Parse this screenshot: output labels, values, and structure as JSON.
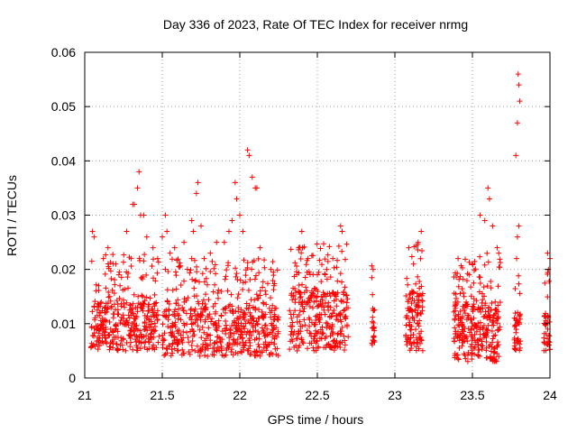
{
  "chart_data": {
    "type": "scatter",
    "title": "Day 336 of 2023, Rate Of TEC Index for receiver nrmg",
    "xlabel": "GPS time / hours",
    "ylabel": "ROTI / TECUs",
    "xlim": [
      21,
      24
    ],
    "ylim": [
      0,
      0.06
    ],
    "xticks": [
      "21",
      "21.5",
      "22",
      "22.5",
      "23",
      "23.5",
      "24"
    ],
    "yticks": [
      "0",
      "0.01",
      "0.02",
      "0.03",
      "0.04",
      "0.05",
      "0.06"
    ],
    "grid": true,
    "marker": "+",
    "color": "#ff0000",
    "series": [
      {
        "name": "ROTI",
        "clusters": [
          {
            "x": [
              21.04,
              21.48
            ],
            "base": [
              0.005,
              0.014
            ],
            "n": 360
          },
          {
            "x": [
              21.5,
              22.25
            ],
            "base": [
              0.004,
              0.013
            ],
            "n": 560
          },
          {
            "x": [
              22.32,
              22.7
            ],
            "base": [
              0.005,
              0.016
            ],
            "n": 320
          },
          {
            "x": [
              22.85,
              22.87
            ],
            "base": [
              0.006,
              0.014
            ],
            "n": 24
          },
          {
            "x": [
              23.07,
              23.18
            ],
            "base": [
              0.005,
              0.016
            ],
            "n": 110
          },
          {
            "x": [
              23.38,
              23.68
            ],
            "base": [
              0.003,
              0.014
            ],
            "n": 300
          },
          {
            "x": [
              23.77,
              23.81
            ],
            "base": [
              0.005,
              0.012
            ],
            "n": 40
          },
          {
            "x": [
              23.96,
              24.0
            ],
            "base": [
              0.005,
              0.012
            ],
            "n": 40
          }
        ],
        "points": [
          [
            21.05,
            0.027
          ],
          [
            21.06,
            0.026
          ],
          [
            21.09,
            0.017
          ],
          [
            21.12,
            0.022
          ],
          [
            21.15,
            0.024
          ],
          [
            21.2,
            0.021
          ],
          [
            21.22,
            0.019
          ],
          [
            21.27,
            0.027
          ],
          [
            21.3,
            0.022
          ],
          [
            21.31,
            0.032
          ],
          [
            21.32,
            0.032
          ],
          [
            21.34,
            0.035
          ],
          [
            21.35,
            0.038
          ],
          [
            21.36,
            0.03
          ],
          [
            21.38,
            0.03
          ],
          [
            21.4,
            0.026
          ],
          [
            21.44,
            0.024
          ],
          [
            21.47,
            0.022
          ],
          [
            21.5,
            0.026
          ],
          [
            21.52,
            0.03
          ],
          [
            21.53,
            0.027
          ],
          [
            21.55,
            0.023
          ],
          [
            21.58,
            0.024
          ],
          [
            21.64,
            0.025
          ],
          [
            21.69,
            0.029
          ],
          [
            21.7,
            0.027
          ],
          [
            21.72,
            0.034
          ],
          [
            21.73,
            0.036
          ],
          [
            21.75,
            0.028
          ],
          [
            21.77,
            0.022
          ],
          [
            21.81,
            0.023
          ],
          [
            21.85,
            0.025
          ],
          [
            21.9,
            0.025
          ],
          [
            21.93,
            0.027
          ],
          [
            21.95,
            0.029
          ],
          [
            21.97,
            0.036
          ],
          [
            21.98,
            0.033
          ],
          [
            22.0,
            0.03
          ],
          [
            22.02,
            0.027
          ],
          [
            22.05,
            0.042
          ],
          [
            22.06,
            0.041
          ],
          [
            22.08,
            0.037
          ],
          [
            22.1,
            0.035
          ],
          [
            22.11,
            0.035
          ],
          [
            22.13,
            0.024
          ],
          [
            22.2,
            0.02
          ],
          [
            22.22,
            0.017
          ],
          [
            22.38,
            0.024
          ],
          [
            22.4,
            0.027
          ],
          [
            22.44,
            0.022
          ],
          [
            22.5,
            0.019
          ],
          [
            22.56,
            0.02
          ],
          [
            22.6,
            0.022
          ],
          [
            22.65,
            0.028
          ],
          [
            22.66,
            0.027
          ],
          [
            22.86,
            0.02
          ],
          [
            23.09,
            0.024
          ],
          [
            23.12,
            0.021
          ],
          [
            23.15,
            0.025
          ],
          [
            23.17,
            0.027
          ],
          [
            23.5,
            0.021
          ],
          [
            23.55,
            0.03
          ],
          [
            23.58,
            0.029
          ],
          [
            23.6,
            0.035
          ],
          [
            23.61,
            0.033
          ],
          [
            23.63,
            0.028
          ],
          [
            23.66,
            0.024
          ],
          [
            23.67,
            0.023
          ],
          [
            23.78,
            0.041
          ],
          [
            23.79,
            0.047
          ],
          [
            23.795,
            0.056
          ],
          [
            23.8,
            0.054
          ],
          [
            23.805,
            0.051
          ],
          [
            23.8,
            0.028
          ],
          [
            23.79,
            0.026
          ],
          [
            23.785,
            0.022
          ],
          [
            23.985,
            0.023
          ],
          [
            23.99,
            0.02
          ],
          [
            24.0,
            0.022
          ]
        ]
      }
    ]
  }
}
